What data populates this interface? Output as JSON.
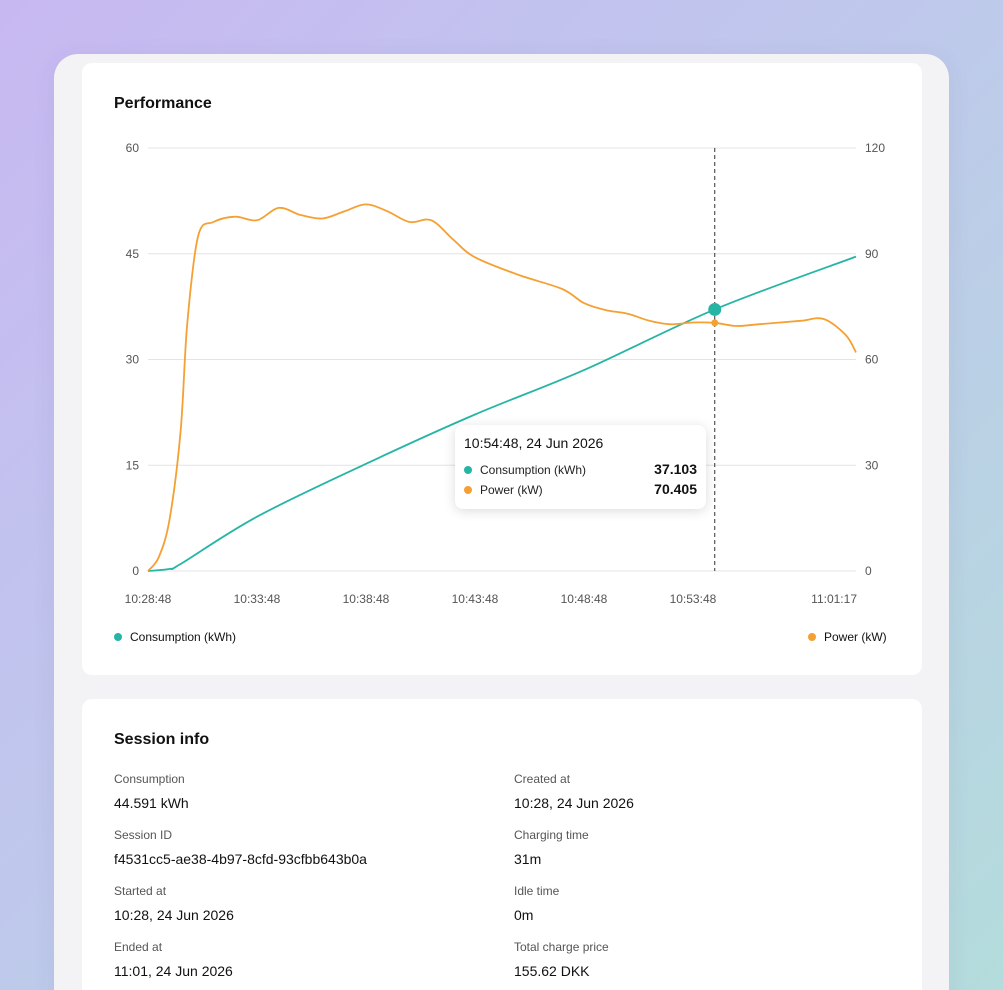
{
  "performance": {
    "title": "Performance",
    "tooltip": {
      "time": "10:54:48, 24 Jun 2026",
      "rows": [
        {
          "label": "Consumption (kWh)",
          "value": "37.103",
          "color": "#26b5a5"
        },
        {
          "label": "Power (kW)",
          "value": "70.405",
          "color": "#f5a033"
        }
      ]
    },
    "legend": {
      "left": {
        "label": "Consumption (kWh)",
        "color": "#26b5a5"
      },
      "right": {
        "label": "Power (kW)",
        "color": "#f5a033"
      }
    }
  },
  "chart_data": {
    "type": "line",
    "x_ticks": [
      "10:28:48",
      "10:33:48",
      "10:38:48",
      "10:43:48",
      "10:48:48",
      "10:53:48",
      "11:01:17"
    ],
    "x_range_minutes": [
      0,
      32.48
    ],
    "y_left": {
      "ticks": [
        "0",
        "15",
        "30",
        "45",
        "60"
      ],
      "range": [
        0,
        60
      ]
    },
    "y_right": {
      "ticks": [
        "0",
        "30",
        "60",
        "90",
        "120"
      ],
      "range": [
        0,
        120
      ]
    },
    "grid": true,
    "cursor_minutes": 26.0,
    "series": [
      {
        "name": "Consumption (kWh)",
        "axis": "left",
        "color": "#26b5a5",
        "points": [
          [
            0,
            0
          ],
          [
            1,
            0.3
          ],
          [
            1.5,
            1
          ],
          [
            5,
            7.7
          ],
          [
            10,
            15.2
          ],
          [
            15,
            22.2
          ],
          [
            20,
            28.5
          ],
          [
            26,
            37.1
          ],
          [
            32.48,
            44.6
          ]
        ]
      },
      {
        "name": "Power (kW)",
        "axis": "right",
        "color": "#f5a033",
        "points": [
          [
            0,
            0
          ],
          [
            0.5,
            4
          ],
          [
            1,
            15
          ],
          [
            1.5,
            40
          ],
          [
            1.8,
            70
          ],
          [
            2.3,
            95
          ],
          [
            3,
            99
          ],
          [
            4,
            100.5
          ],
          [
            5,
            99.5
          ],
          [
            6,
            103
          ],
          [
            7,
            101
          ],
          [
            8,
            100
          ],
          [
            9,
            102
          ],
          [
            10,
            104
          ],
          [
            11,
            102
          ],
          [
            12,
            99
          ],
          [
            13,
            99.5
          ],
          [
            14,
            94
          ],
          [
            15,
            89
          ],
          [
            17,
            84
          ],
          [
            19,
            80
          ],
          [
            20,
            76
          ],
          [
            21,
            74
          ],
          [
            22,
            73
          ],
          [
            23,
            71
          ],
          [
            24,
            70
          ],
          [
            25,
            70.5
          ],
          [
            26,
            70.4
          ],
          [
            27,
            69.5
          ],
          [
            28,
            70
          ],
          [
            29,
            70.5
          ],
          [
            30,
            71
          ],
          [
            31,
            71.5
          ],
          [
            32,
            67
          ],
          [
            32.48,
            62
          ]
        ]
      }
    ]
  },
  "session": {
    "title": "Session info",
    "fields": [
      {
        "label": "Consumption",
        "value": "44.591 kWh"
      },
      {
        "label": "Created at",
        "value": "10:28, 24 Jun 2026"
      },
      {
        "label": "Session ID",
        "value": "f4531cc5-ae38-4b97-8cfd-93cfbb643b0a"
      },
      {
        "label": "Charging time",
        "value": "31m"
      },
      {
        "label": "Started at",
        "value": "10:28, 24 Jun 2026"
      },
      {
        "label": "Idle time",
        "value": "0m"
      },
      {
        "label": "Ended at",
        "value": "11:01, 24 Jun 2026"
      },
      {
        "label": "Total charge price",
        "value": "155.62 DKK"
      }
    ]
  }
}
